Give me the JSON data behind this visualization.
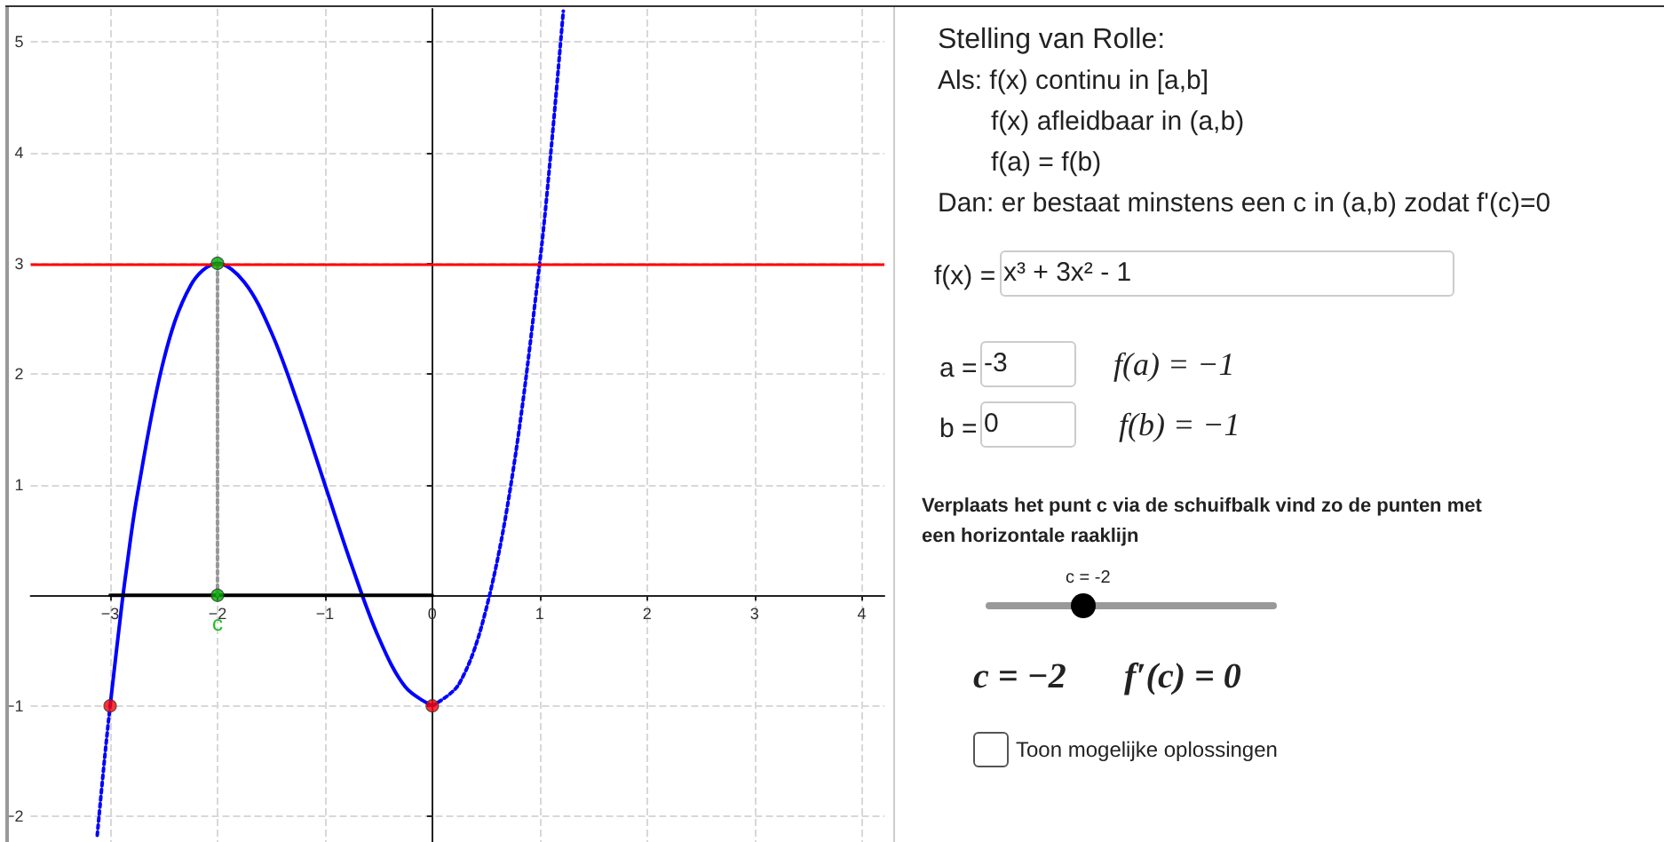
{
  "chart_data": [
    {
      "type": "line",
      "xlim": [
        -3.74,
        4.21
      ],
      "ylim": [
        -2.23,
        5.3
      ],
      "xticks": [
        -3,
        -2,
        -1,
        0,
        1,
        2,
        3,
        4
      ],
      "yticks": [
        -2,
        -1,
        {
          "value": 0,
          "label": null
        },
        1,
        2,
        3,
        4,
        5
      ],
      "grid": true,
      "series": [
        {
          "color": "#0000ff",
          "line_style": "solid",
          "marker": "none",
          "x": [
            -3,
            -2.9,
            -2.85,
            -2.75,
            -2.5,
            -2.25,
            -2,
            -1.75,
            -1.5,
            -1.25,
            -1,
            -0.75,
            -0.5,
            -0.25,
            0
          ],
          "values": [
            -1,
            -0.16,
            0.22,
            0.89,
            2.13,
            2.8,
            3,
            2.83,
            2.38,
            1.73,
            1,
            0.27,
            -0.38,
            -0.83,
            -1
          ]
        },
        {
          "color": "#0000ff",
          "line_style": "dotted",
          "marker": "none",
          "x": [
            -3.12,
            -3.05,
            -3
          ],
          "values": [
            -2.17,
            -1.46,
            -1
          ]
        },
        {
          "color": "#0000ff",
          "line_style": "dotted",
          "marker": "none",
          "x": [
            0,
            0.25,
            0.5,
            0.75,
            1,
            1.1,
            1.22
          ],
          "values": [
            -1,
            -0.8,
            -0.13,
            1.11,
            3,
            3.96,
            5.28
          ]
        },
        {
          "color": "#000000",
          "line_style": "solid",
          "marker": "none",
          "x": [
            -3,
            0
          ],
          "values": [
            0,
            0
          ]
        },
        {
          "color": "#999999",
          "line_style": "dotted",
          "marker": "none",
          "x": [
            -2,
            -2
          ],
          "values": [
            0,
            3
          ]
        },
        {
          "type": "scatter",
          "color": "#ff0000",
          "marker": "circle",
          "x": [
            -3,
            0
          ],
          "values": [
            -1,
            -1
          ]
        },
        {
          "type": "scatter",
          "color": "#00aa00",
          "marker": "circle",
          "x": [
            -2,
            -2
          ],
          "values": [
            3,
            0
          ]
        }
      ],
      "ref_lines": [
        {
          "axis": "y",
          "value": 3,
          "color": "#ff0000"
        }
      ],
      "annotations": [
        {
          "text": "c",
          "x": -2,
          "y": 0
        }
      ]
    },
    {
      "type": "other",
      "title": "Stelling van Rolle:",
      "annotations": [
        "Als: f(x) continu in [a,b]",
        "f(x) afleidbaar in (a,b)",
        "f(a) = f(b)",
        "Dan: er bestaat minstens een c in (a,b) zodat f'(c)=0",
        "f(x) =",
        "x³ + 3x² - 1",
        "a =",
        "-3",
        "f(a) = −1",
        "b =",
        "0",
        "f(b) = −1",
        "Verplaats het punt c via de schuifbalk vind zo de punten met een horizontale raaklijn",
        "c = -2",
        "c = −2",
        "f′(c) = 0",
        "Toon mogelijke oplossingen"
      ]
    }
  ]
}
